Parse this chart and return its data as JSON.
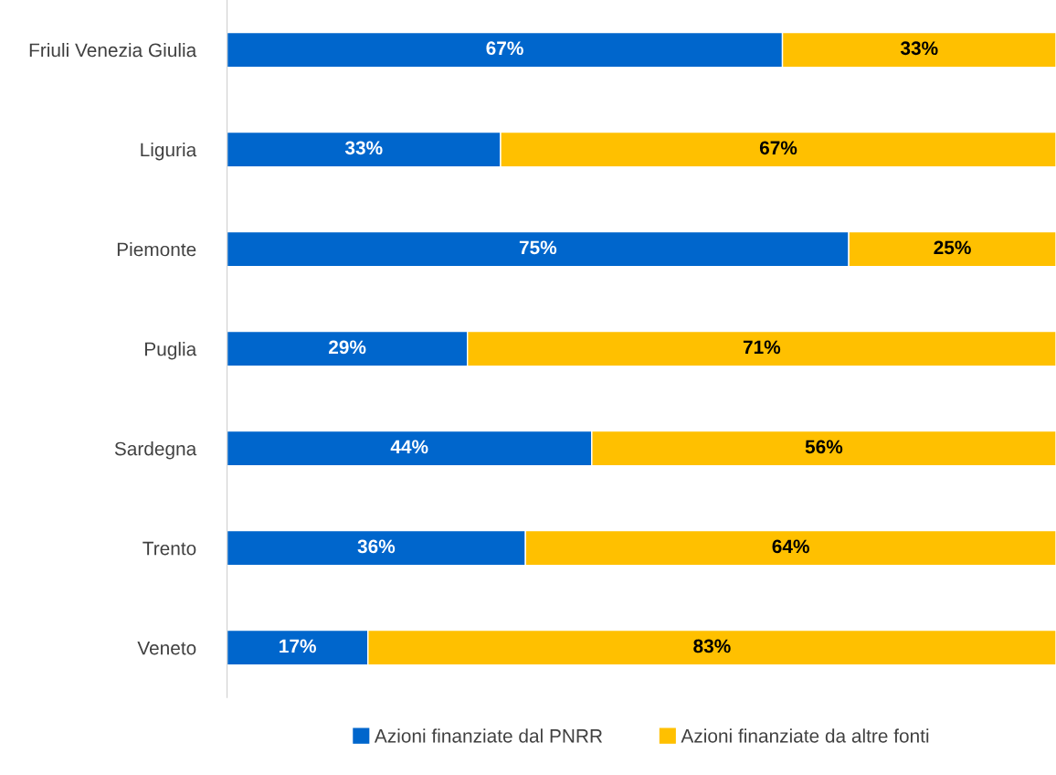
{
  "chart_data": {
    "type": "bar",
    "orientation": "horizontal",
    "stacked": true,
    "categories": [
      "Friuli Venezia Giulia",
      "Liguria",
      "Piemonte",
      "Puglia",
      "Sardegna",
      "Trento",
      "Veneto"
    ],
    "series": [
      {
        "name": "Azioni finanziate dal PNRR",
        "color": "#0066cc",
        "values": [
          67,
          33,
          75,
          29,
          44,
          36,
          17
        ],
        "value_labels": [
          "67%",
          "33%",
          "75%",
          "29%",
          "44%",
          "36%",
          "17%"
        ]
      },
      {
        "name": "Azioni finanziate da altre fonti",
        "color": "#ffc000",
        "values": [
          33,
          67,
          25,
          71,
          56,
          64,
          83
        ],
        "value_labels": [
          "33%",
          "67%",
          "25%",
          "71%",
          "56%",
          "64%",
          "83%"
        ]
      }
    ],
    "legend": "bottom"
  }
}
